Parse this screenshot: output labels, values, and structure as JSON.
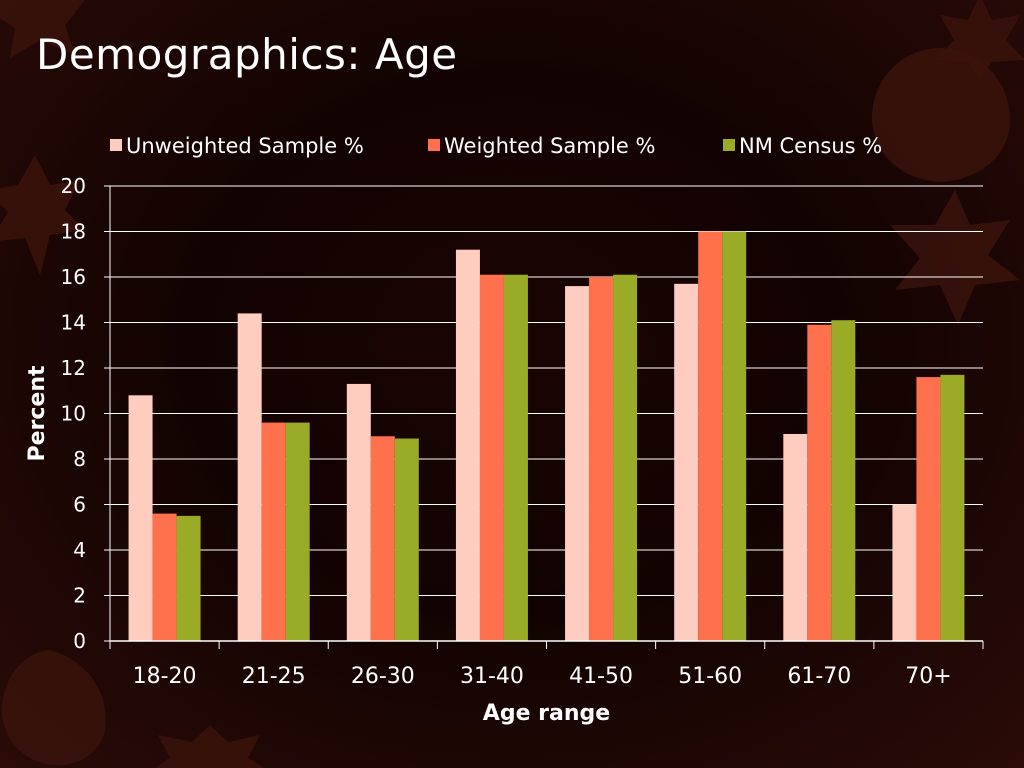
{
  "slide": {
    "title": "Demographics:  Age"
  },
  "chart_data": {
    "type": "bar",
    "title": "",
    "xlabel": "Age range",
    "ylabel": "Percent",
    "ylim": [
      0,
      20
    ],
    "yticks": [
      0,
      2,
      4,
      6,
      8,
      10,
      12,
      14,
      16,
      18,
      20
    ],
    "grid": true,
    "legend_position": "top",
    "categories": [
      "18-20",
      "21-25",
      "26-30",
      "31-40",
      "41-50",
      "51-60",
      "61-70",
      "70+"
    ],
    "series": [
      {
        "name": "Unweighted Sample %",
        "color": "#ffccc0",
        "values": [
          10.8,
          14.4,
          11.3,
          17.2,
          15.6,
          15.7,
          9.1,
          6.0
        ]
      },
      {
        "name": "Weighted Sample %",
        "color": "#ff704d",
        "values": [
          5.6,
          9.6,
          9.0,
          16.1,
          16.0,
          18.0,
          13.9,
          11.6
        ]
      },
      {
        "name": "NM Census %",
        "color": "#9aab27",
        "values": [
          5.5,
          9.6,
          8.9,
          16.1,
          16.1,
          18.0,
          14.1,
          11.7
        ]
      }
    ]
  }
}
